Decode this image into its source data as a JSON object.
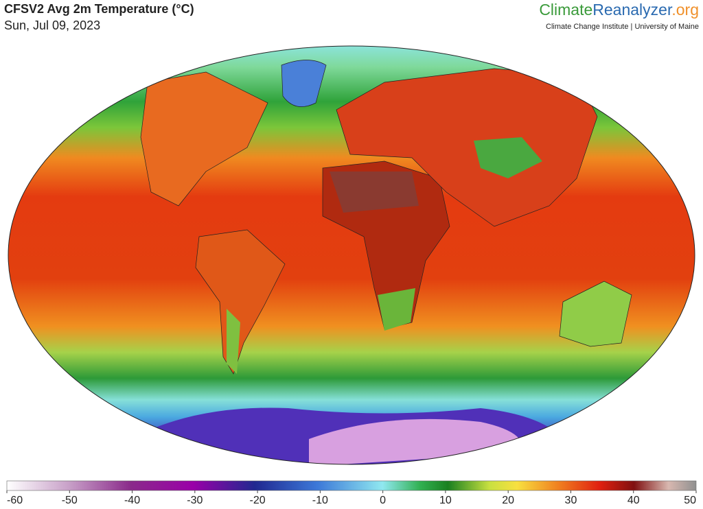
{
  "header": {
    "title": "CFSV2 Avg 2m Temperature (°C)",
    "date": "Sun, Jul 09, 2023",
    "brand": [
      "Climate",
      "Reanalyzer",
      ".org"
    ],
    "affiliation": "Climate Change Institute | University of Maine"
  },
  "colorbar": {
    "lim": [
      -60,
      50
    ],
    "ticks": [
      -60,
      -50,
      -40,
      -30,
      -20,
      -10,
      0,
      10,
      20,
      30,
      40,
      50
    ]
  }
}
